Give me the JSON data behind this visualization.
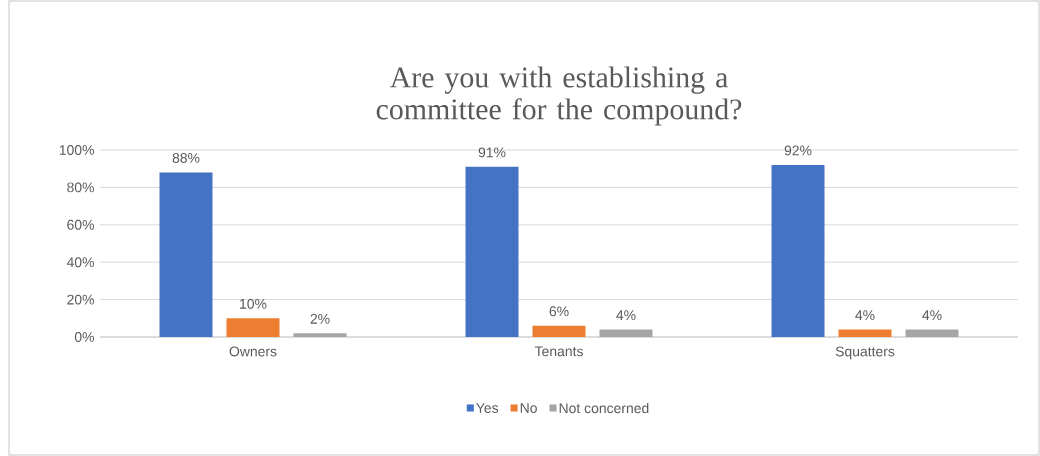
{
  "chart_data": {
    "type": "bar",
    "title": "Are you with establishing a committee for the compound?",
    "categories": [
      "Owners",
      "Tenants",
      "Squatters"
    ],
    "series": [
      {
        "name": "Yes",
        "color": "#4472c4",
        "values": [
          88,
          91,
          92
        ],
        "value_labels": [
          "88%",
          "91%",
          "92%"
        ]
      },
      {
        "name": "No",
        "color": "#ed7d31",
        "values": [
          10,
          6,
          4
        ],
        "value_labels": [
          "10%",
          "6%",
          "4%"
        ]
      },
      {
        "name": "Not concerned",
        "color": "#a5a5a5",
        "values": [
          2,
          4,
          4
        ],
        "value_labels": [
          "2%",
          "4%",
          "4%"
        ]
      }
    ],
    "ylim": [
      0,
      100
    ],
    "yticks": [
      {
        "value": 0,
        "label": "0%"
      },
      {
        "value": 20,
        "label": "20%"
      },
      {
        "value": 40,
        "label": "40%"
      },
      {
        "value": 60,
        "label": "60%"
      },
      {
        "value": 80,
        "label": "80%"
      },
      {
        "value": 100,
        "label": "100%"
      }
    ],
    "grid": "y",
    "legend": "bottom"
  }
}
